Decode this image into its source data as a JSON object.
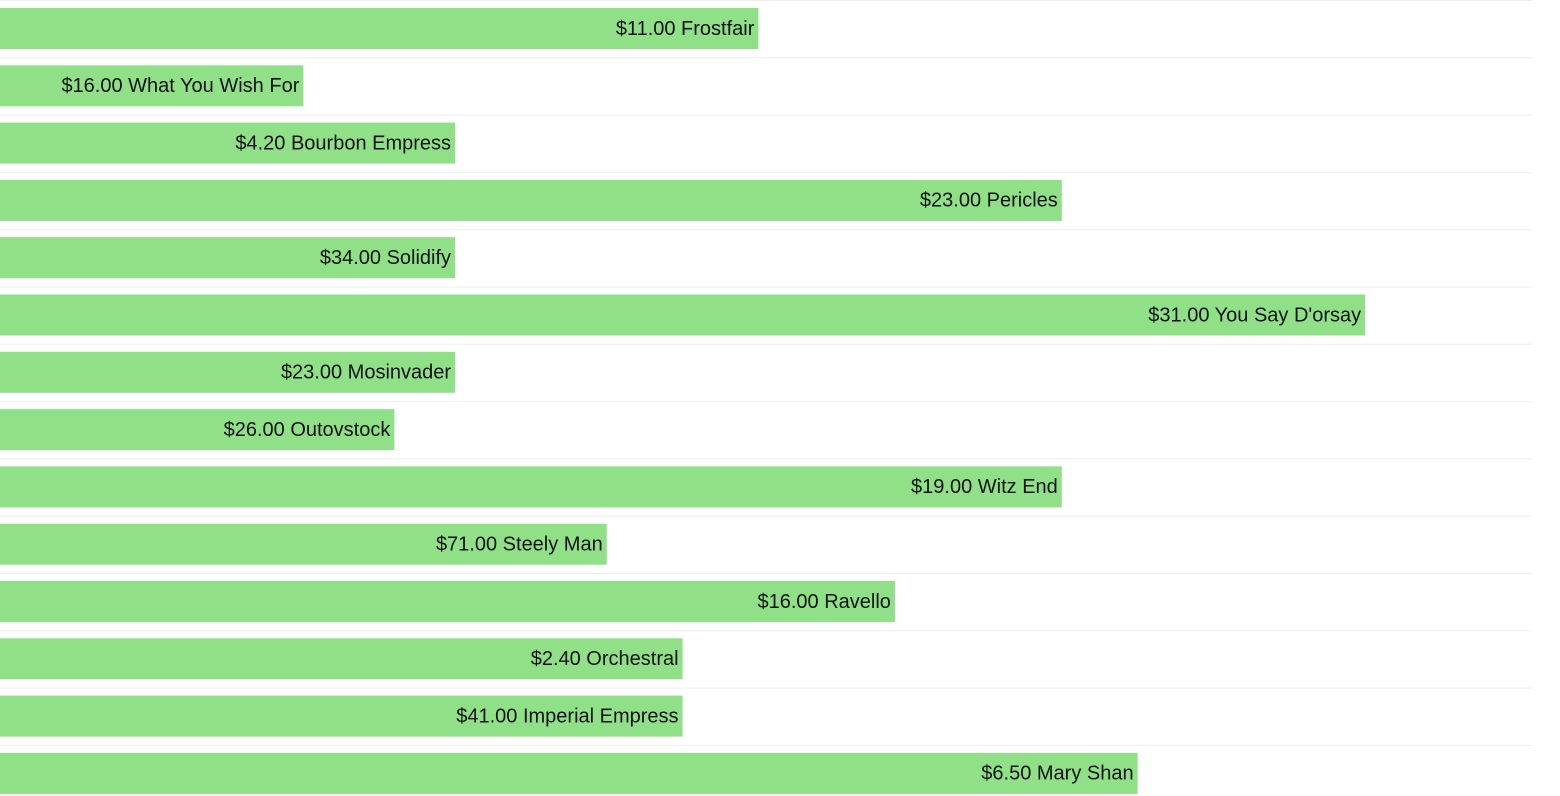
{
  "type": "bar",
  "orientation": "horizontal",
  "color": "#90e088",
  "xlim": [
    0,
    10.1
  ],
  "rows": [
    {
      "label": "$11.00 Frostfair",
      "value": 5
    },
    {
      "label": "$16.00 What You Wish For",
      "value": 2
    },
    {
      "label": "$4.20 Bourbon Empress",
      "value": 3
    },
    {
      "label": "$23.00 Pericles",
      "value": 7
    },
    {
      "label": "$34.00 Solidify",
      "value": 3
    },
    {
      "label": "$31.00 You Say D'orsay",
      "value": 9
    },
    {
      "label": "$23.00 Mosinvader",
      "value": 3
    },
    {
      "label": "$26.00 Outovstock",
      "value": 2.6
    },
    {
      "label": "$19.00 Witz End",
      "value": 7
    },
    {
      "label": "$71.00 Steely Man",
      "value": 4
    },
    {
      "label": "$16.00 Ravello",
      "value": 5.9
    },
    {
      "label": "$2.40 Orchestral",
      "value": 4.5
    },
    {
      "label": "$41.00 Imperial Empress",
      "value": 4.5
    },
    {
      "label": "$6.50 Mary Shan",
      "value": 7.5
    }
  ]
}
